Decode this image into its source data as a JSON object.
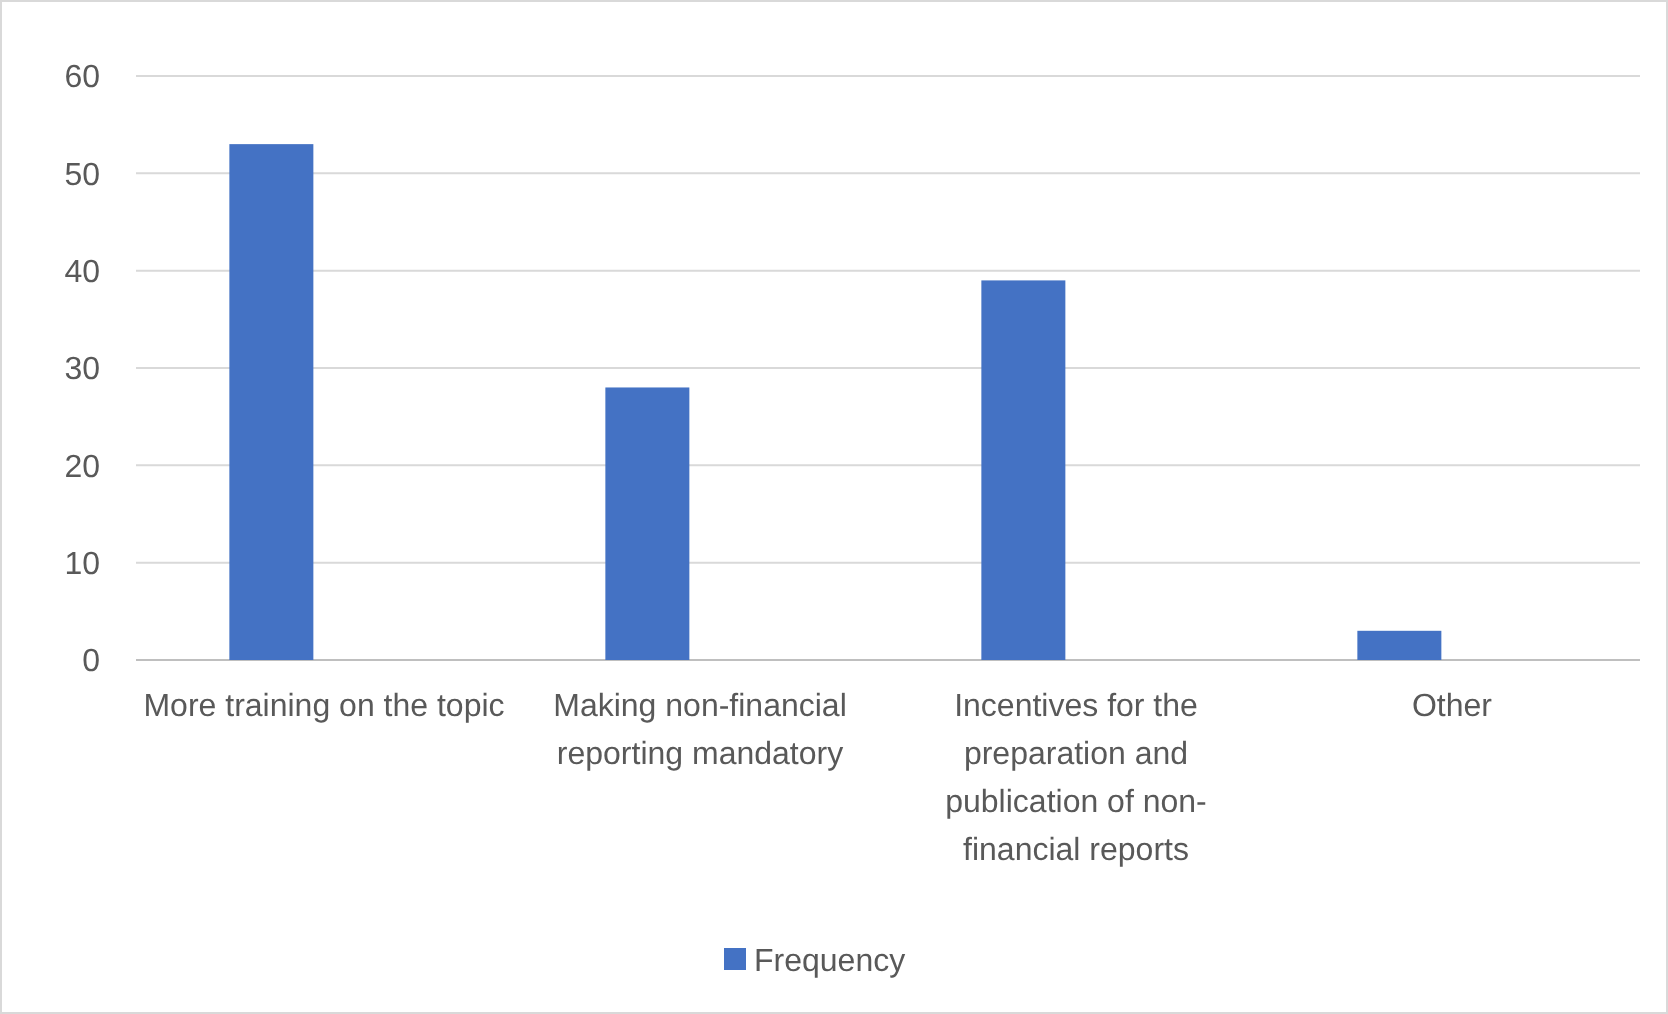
{
  "chart_data": {
    "type": "bar",
    "categories": [
      "More training on the topic",
      "Making non-financial reporting mandatory",
      "Incentives for the preparation and publication of non-financial reports",
      "Other"
    ],
    "series": [
      {
        "name": "Frequency",
        "color": "#4472c4",
        "values": [
          53,
          28,
          39,
          3
        ]
      }
    ],
    "ylim": [
      0,
      60
    ],
    "yticks": [
      0,
      10,
      20,
      30,
      40,
      50,
      60
    ],
    "grid": "y",
    "legend": "bottom"
  }
}
